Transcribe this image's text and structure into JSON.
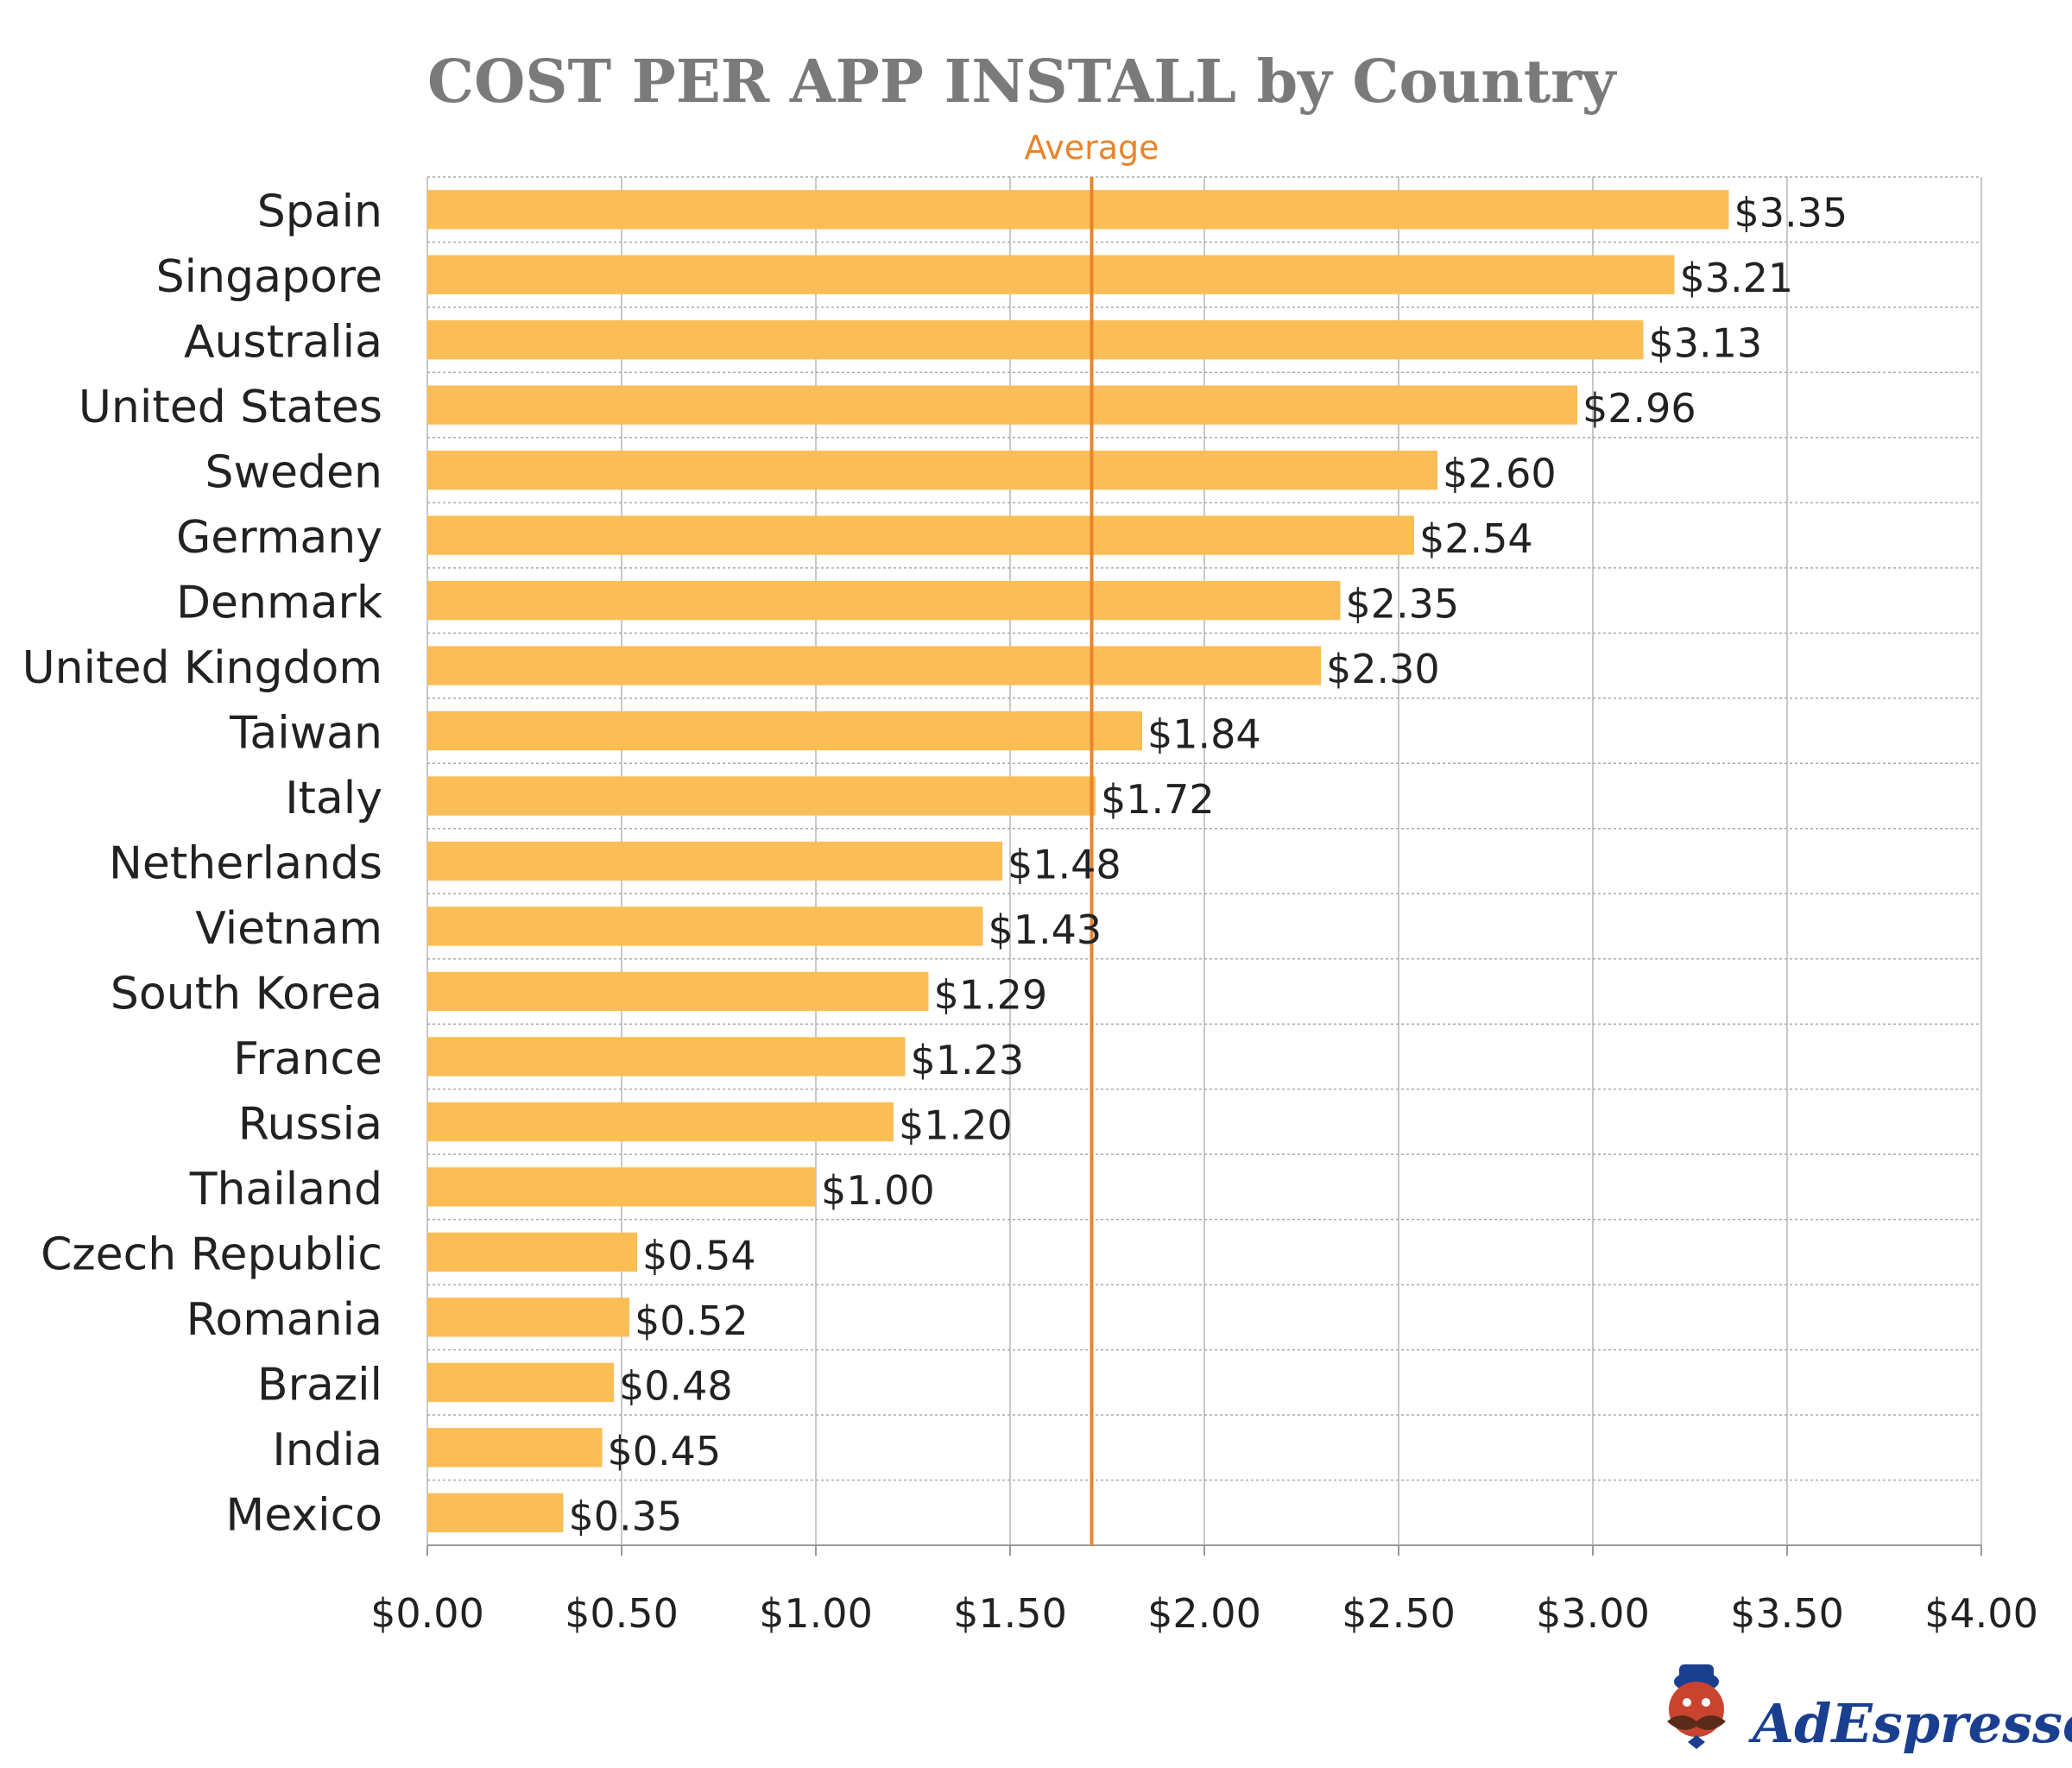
{
  "chart_data": {
    "type": "bar",
    "orientation": "horizontal",
    "title": "COST PER APP INSTALL by Country",
    "categories": [
      "Spain",
      "Singapore",
      "Australia",
      "United States",
      "Sweden",
      "Germany",
      "Denmark",
      "United Kingdom",
      "Taiwan",
      "Italy",
      "Netherlands",
      "Vietnam",
      "South Korea",
      "France",
      "Russia",
      "Thailand",
      "Czech Republic",
      "Romania",
      "Brazil",
      "India",
      "Mexico"
    ],
    "values": [
      3.35,
      3.21,
      3.13,
      2.96,
      2.6,
      2.54,
      2.35,
      2.3,
      1.84,
      1.72,
      1.48,
      1.43,
      1.29,
      1.23,
      1.2,
      1.0,
      0.54,
      0.52,
      0.48,
      0.45,
      0.35
    ],
    "value_labels": [
      "$3.35",
      "$3.21",
      "$3.13",
      "$2.96",
      "$2.60",
      "$2.54",
      "$2.35",
      "$2.30",
      "$1.84",
      "$1.72",
      "$1.48",
      "$1.43",
      "$1.29",
      "$1.23",
      "$1.20",
      "$1.00",
      "$0.54",
      "$0.52",
      "$0.48",
      "$0.45",
      "$0.35"
    ],
    "xlim": [
      0,
      4
    ],
    "xticks": [
      0,
      0.5,
      1,
      1.5,
      2,
      2.5,
      3,
      3.5,
      4
    ],
    "xtick_labels": [
      "$0.00",
      "$0.50",
      "$1.00",
      "$1.50",
      "$2.00",
      "$2.50",
      "$3.00",
      "$3.50",
      "$4.00"
    ],
    "reference_line": {
      "label": "Average",
      "value": 1.71
    },
    "grid": true,
    "colors": {
      "bar": "#fbbd55",
      "average_line": "#e8842c",
      "title": "#7a7a7a",
      "grid": "#c8c8c8"
    }
  },
  "brand": {
    "name": "AdEspresso",
    "icon": "mustache-mascot-icon"
  }
}
